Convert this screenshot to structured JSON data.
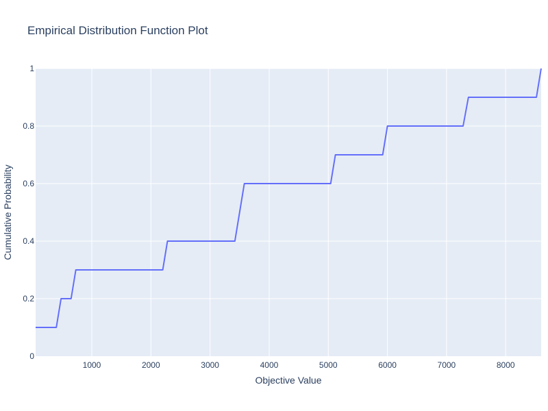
{
  "chart_data": {
    "type": "line",
    "title": "Empirical Distribution Function Plot",
    "xlabel": "Objective Value",
    "ylabel": "Cumulative Probability",
    "xlim": [
      50,
      8600
    ],
    "ylim": [
      0,
      1
    ],
    "x_ticks": [
      1000,
      2000,
      3000,
      4000,
      5000,
      6000,
      7000,
      8000
    ],
    "x_tick_labels": [
      "1000",
      "2000",
      "3000",
      "4000",
      "5000",
      "6000",
      "7000",
      "8000"
    ],
    "y_ticks": [
      0,
      0.2,
      0.4,
      0.6,
      0.8,
      1
    ],
    "y_tick_labels": [
      "0",
      "0.2",
      "0.4",
      "0.6",
      "0.8",
      "1"
    ],
    "grid": true,
    "colors": {
      "line": "#636efa",
      "plot_background": "#e5ecf6",
      "text": "#2a3f5f",
      "grid": "#ffffff"
    },
    "series": [
      {
        "x": [
          50,
          400,
          480,
          650,
          730,
          2200,
          2280,
          3420,
          3580,
          5040,
          5120,
          5920,
          6000,
          7280,
          7370,
          8520,
          8600
        ],
        "y": [
          0.1,
          0.1,
          0.2,
          0.2,
          0.3,
          0.3,
          0.4,
          0.4,
          0.6,
          0.6,
          0.7,
          0.7,
          0.8,
          0.8,
          0.9,
          0.9,
          1.0
        ]
      }
    ]
  }
}
